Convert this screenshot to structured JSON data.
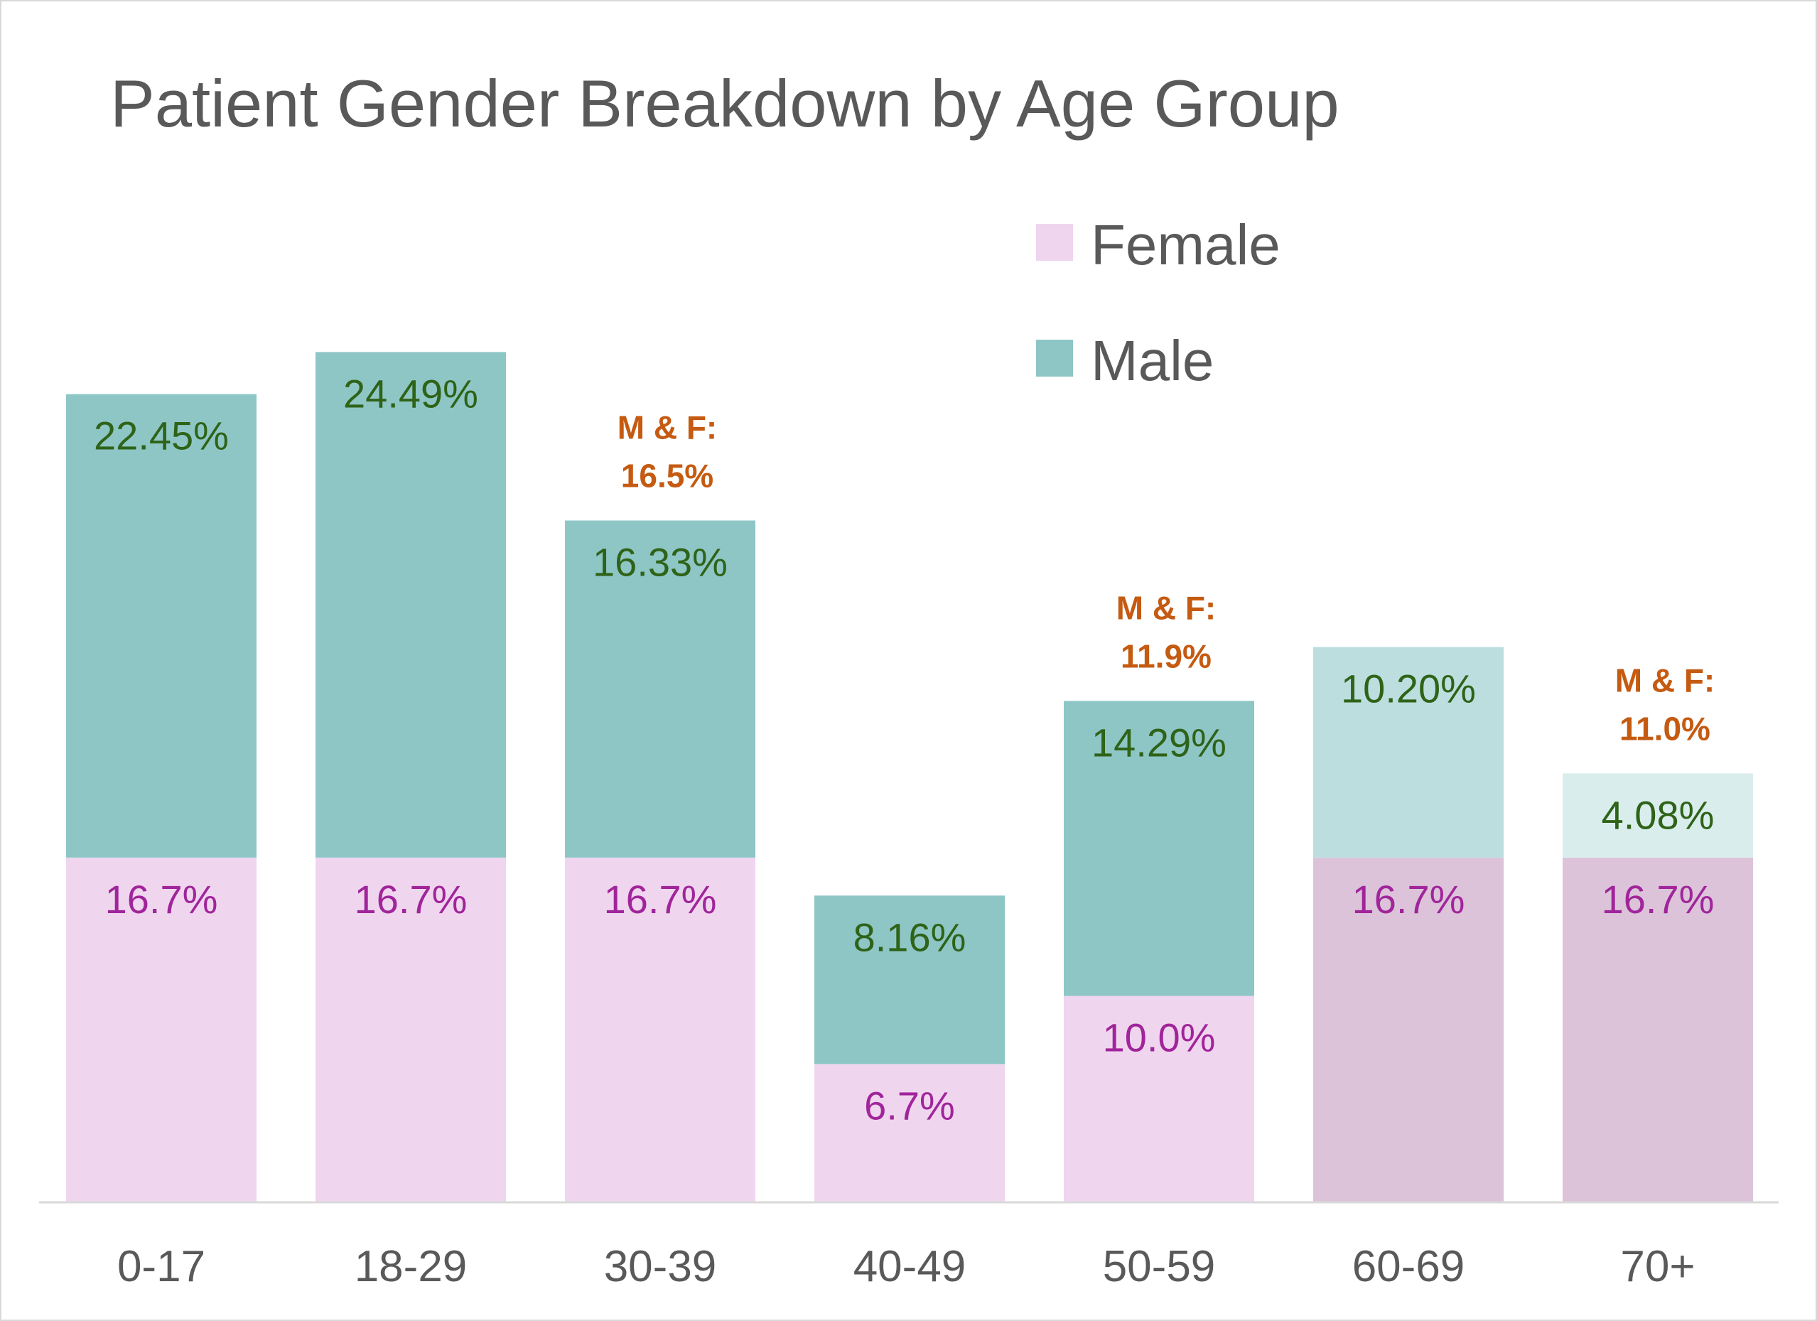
{
  "chart_data": {
    "type": "bar",
    "stacked": true,
    "title": "Patient Gender Breakdown by Age Group",
    "xlabel": "",
    "ylabel": "",
    "ylim": [
      0,
      45
    ],
    "grid": false,
    "legend": "top-right",
    "categories": [
      "0-17",
      "18-29",
      "30-39",
      "40-49",
      "50-59",
      "60-69",
      "70+"
    ],
    "series": [
      {
        "name": "Female",
        "values": [
          16.7,
          16.7,
          16.7,
          6.7,
          10.0,
          16.7,
          16.7
        ],
        "labels": [
          "16.7%",
          "16.7%",
          "16.7%",
          "6.7%",
          "10.0%",
          "16.7%",
          "16.7%"
        ],
        "color": "#f0d5ef",
        "colors": [
          "#f0d5ef",
          "#f0d5ef",
          "#f0d5ef",
          "#f0d5ef",
          "#f0d5ef",
          "#dcc3da",
          "#dcc3da"
        ],
        "label_color": "#a0259a"
      },
      {
        "name": "Male",
        "values": [
          22.45,
          24.49,
          16.33,
          8.16,
          14.29,
          10.2,
          4.08
        ],
        "labels": [
          "22.45%",
          "24.49%",
          "16.33%",
          "8.16%",
          "14.29%",
          "10.20%",
          "4.08%"
        ],
        "color": "#8ec6c6",
        "colors": [
          "#8ec6c6",
          "#8ec6c6",
          "#8ec6c6",
          "#8ec6c6",
          "#8ec6c6",
          "#bcdede",
          "#daeded"
        ],
        "label_color": "#2e6318"
      }
    ],
    "annotations": [
      {
        "category": "30-39",
        "lines": [
          "M & F:",
          "16.5%"
        ]
      },
      {
        "category": "50-59",
        "lines": [
          "M & F:",
          "11.9%"
        ]
      },
      {
        "category": "70+",
        "lines": [
          "M & F:",
          "11.0%"
        ]
      }
    ],
    "annotation_color": "#c55a11",
    "axis_color": "#d9d9d9"
  }
}
